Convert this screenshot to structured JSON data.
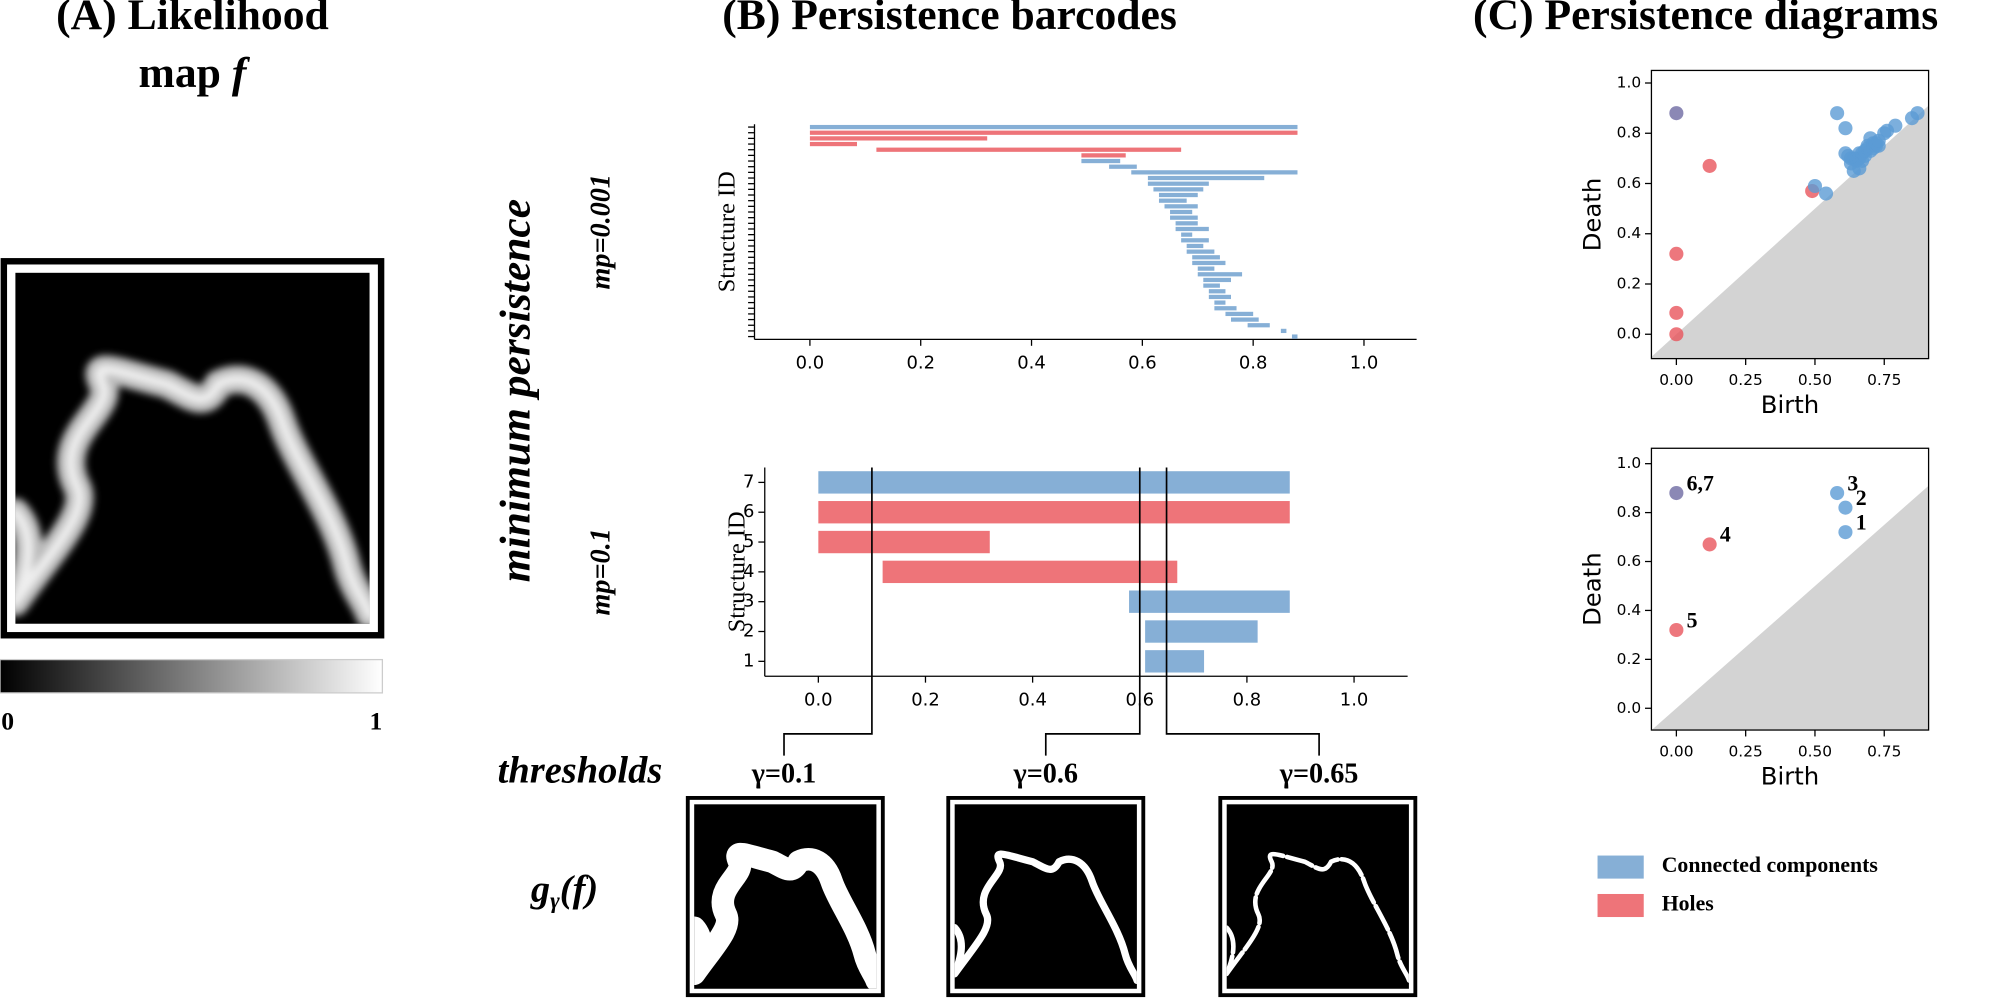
{
  "panel_a": {
    "title": [
      "(A) Likelihood",
      "map"
    ],
    "symbol": "f",
    "colorbar_ticks": [
      0,
      1
    ]
  },
  "panel_b": {
    "title": "(B) Persistence barcodes",
    "side_label": "minimum persistence",
    "thresholds_label": "thresholds",
    "output_label": {
      "g": "g",
      "sub": "γ",
      "arg": "(f)"
    }
  },
  "panel_c": {
    "title": "(C) Persistence diagrams"
  },
  "legend": [
    {
      "name": "Connected components",
      "color": "#86afd6"
    },
    {
      "name": "Holes",
      "color": "#ee7479"
    }
  ],
  "chart_data": [
    {
      "type": "barcode",
      "side_label": "mp=0.001",
      "ylabel": "Structure ID",
      "categories": [
        null,
        null,
        null,
        null,
        null,
        null,
        null,
        null,
        null,
        null,
        null,
        null,
        null,
        null,
        null,
        null,
        null,
        null,
        null,
        null,
        null,
        null,
        null,
        null,
        null,
        null,
        null,
        null,
        null,
        null,
        null,
        null,
        null,
        null,
        null,
        null,
        null,
        null
      ],
      "start": [
        0.87,
        0.85,
        0.79,
        0.76,
        0.75,
        0.73,
        0.73,
        0.72,
        0.72,
        0.71,
        0.71,
        0.7,
        0.7,
        0.69,
        0.69,
        0.68,
        0.68,
        0.67,
        0.67,
        0.66,
        0.66,
        0.65,
        0.65,
        0.64,
        0.63,
        0.63,
        0.62,
        0.61,
        0.61,
        0.58,
        0.54,
        0.49,
        0.49,
        0.12,
        0,
        0,
        0,
        0
      ],
      "end": [
        0.88,
        0.86,
        0.83,
        0.81,
        0.8,
        0.77,
        0.75,
        0.76,
        0.75,
        0.74,
        0.76,
        0.78,
        0.73,
        0.75,
        0.74,
        0.73,
        0.71,
        0.72,
        0.69,
        0.72,
        0.7,
        0.7,
        0.69,
        0.7,
        0.68,
        0.7,
        0.71,
        0.72,
        0.82,
        0.88,
        0.59,
        0.56,
        0.57,
        0.67,
        0.085,
        0.32,
        0.88,
        0.88
      ],
      "colors": [
        "#86afd6",
        "#86afd6",
        "#86afd6",
        "#86afd6",
        "#86afd6",
        "#86afd6",
        "#86afd6",
        "#86afd6",
        "#86afd6",
        "#86afd6",
        "#86afd6",
        "#86afd6",
        "#86afd6",
        "#86afd6",
        "#86afd6",
        "#86afd6",
        "#86afd6",
        "#86afd6",
        "#86afd6",
        "#86afd6",
        "#86afd6",
        "#86afd6",
        "#86afd6",
        "#86afd6",
        "#86afd6",
        "#86afd6",
        "#86afd6",
        "#86afd6",
        "#86afd6",
        "#86afd6",
        "#86afd6",
        "#86afd6",
        "#ee7479",
        "#ee7479",
        "#ee7479",
        "#ee7479",
        "#ee7479",
        "#86afd6"
      ],
      "xlim": [
        -0.1,
        1.095
      ],
      "xticks": [
        {
          "value": 0,
          "label": "0.0"
        },
        0.2,
        0.4,
        0.6,
        0.8,
        {
          "value": 1,
          "label": "1.0"
        }
      ]
    },
    {
      "type": "barcode",
      "side_label": "mp=0.1",
      "ylabel": "Structure ID",
      "categories": [
        "1",
        "2",
        "3",
        "4",
        "5",
        "6",
        "7"
      ],
      "start": [
        0.61,
        0.61,
        0.58,
        0.12,
        0,
        0,
        0
      ],
      "end": [
        0.72,
        0.82,
        0.88,
        0.67,
        0.32,
        0.88,
        0.88
      ],
      "colors": [
        "#86afd6",
        "#86afd6",
        "#86afd6",
        "#ee7479",
        "#ee7479",
        "#ee7479",
        "#86afd6"
      ],
      "xlim": [
        -0.1,
        1.1
      ],
      "xticks": [
        {
          "value": 0,
          "label": "0.0"
        },
        0.2,
        0.4,
        0.6,
        0.8,
        {
          "value": 1,
          "label": "1.0"
        }
      ],
      "thresholds": [
        {
          "value": 0.1,
          "label": "γ=0.1"
        },
        {
          "value": 0.6,
          "label": "γ=0.6"
        },
        {
          "value": 0.65,
          "label": "γ=0.65"
        }
      ]
    },
    {
      "type": "scatter",
      "xlabel": "Birth",
      "ylabel": "Death",
      "x": [
        0,
        0.12,
        0,
        0,
        0,
        0.49,
        0.5,
        0.54,
        0.58,
        0.61,
        0.61,
        0.62,
        0.63,
        0.63,
        0.64,
        0.65,
        0.65,
        0.66,
        0.66,
        0.67,
        0.67,
        0.68,
        0.68,
        0.69,
        0.69,
        0.7,
        0.7,
        0.71,
        0.71,
        0.72,
        0.72,
        0.73,
        0.73,
        0.75,
        0.76,
        0.79,
        0.85,
        0.87,
        0.64,
        0.66
      ],
      "y": [
        0.88,
        0.67,
        0.32,
        0.085,
        0,
        0.57,
        0.59,
        0.56,
        0.88,
        0.82,
        0.72,
        0.71,
        0.7,
        0.68,
        0.7,
        0.69,
        0.7,
        0.7,
        0.72,
        0.69,
        0.72,
        0.71,
        0.73,
        0.74,
        0.75,
        0.73,
        0.78,
        0.76,
        0.74,
        0.75,
        0.76,
        0.75,
        0.77,
        0.8,
        0.81,
        0.83,
        0.86,
        0.88,
        0.65,
        0.66
      ],
      "colors": [
        "#6e6aa3",
        "#e8555d",
        "#e8555d",
        "#e8555d",
        "#e8555d",
        "#e8555d",
        "#5b9bd5",
        "#5b9bd5",
        "#5b9bd5",
        "#5b9bd5",
        "#5b9bd5",
        "#5b9bd5",
        "#5b9bd5",
        "#5b9bd5",
        "#5b9bd5",
        "#5b9bd5",
        "#5b9bd5",
        "#5b9bd5",
        "#5b9bd5",
        "#5b9bd5",
        "#5b9bd5",
        "#5b9bd5",
        "#5b9bd5",
        "#5b9bd5",
        "#5b9bd5",
        "#5b9bd5",
        "#5b9bd5",
        "#5b9bd5",
        "#5b9bd5",
        "#5b9bd5",
        "#5b9bd5",
        "#5b9bd5",
        "#5b9bd5",
        "#5b9bd5",
        "#5b9bd5",
        "#5b9bd5",
        "#5b9bd5",
        "#5b9bd5",
        "#5b9bd5",
        "#5b9bd5"
      ],
      "xlim": [
        -0.09,
        0.91
      ],
      "ylim": [
        -0.097,
        1.05
      ],
      "xticks": [
        {
          "value": 0,
          "label": "0.00"
        },
        0.25,
        {
          "value": 0.5,
          "label": "0.50"
        },
        0.75
      ],
      "yticks": [
        {
          "value": 0,
          "label": "0.0"
        },
        0.2,
        0.4,
        0.6,
        0.8,
        {
          "value": 1,
          "label": "1.0"
        }
      ]
    },
    {
      "type": "scatter",
      "xlabel": "Birth",
      "ylabel": "Death",
      "x": [
        0.61,
        0.61,
        0.58,
        0.12,
        0,
        0
      ],
      "y": [
        0.72,
        0.82,
        0.88,
        0.67,
        0.32,
        0.88
      ],
      "point_labels": [
        "1",
        "2",
        "3",
        "4",
        "5",
        "6,7"
      ],
      "colors": [
        "#5b9bd5",
        "#5b9bd5",
        "#5b9bd5",
        "#e8555d",
        "#e8555d",
        "#6e6aa3"
      ],
      "xlim": [
        -0.09,
        0.91
      ],
      "ylim": [
        -0.089,
        1.063
      ],
      "xticks": [
        {
          "value": 0,
          "label": "0.00"
        },
        0.25,
        {
          "value": 0.5,
          "label": "0.50"
        },
        0.75
      ],
      "yticks": [
        {
          "value": 0,
          "label": "0.0"
        },
        0.2,
        0.4,
        0.6,
        0.8,
        {
          "value": 1,
          "label": "1.0"
        }
      ]
    }
  ]
}
